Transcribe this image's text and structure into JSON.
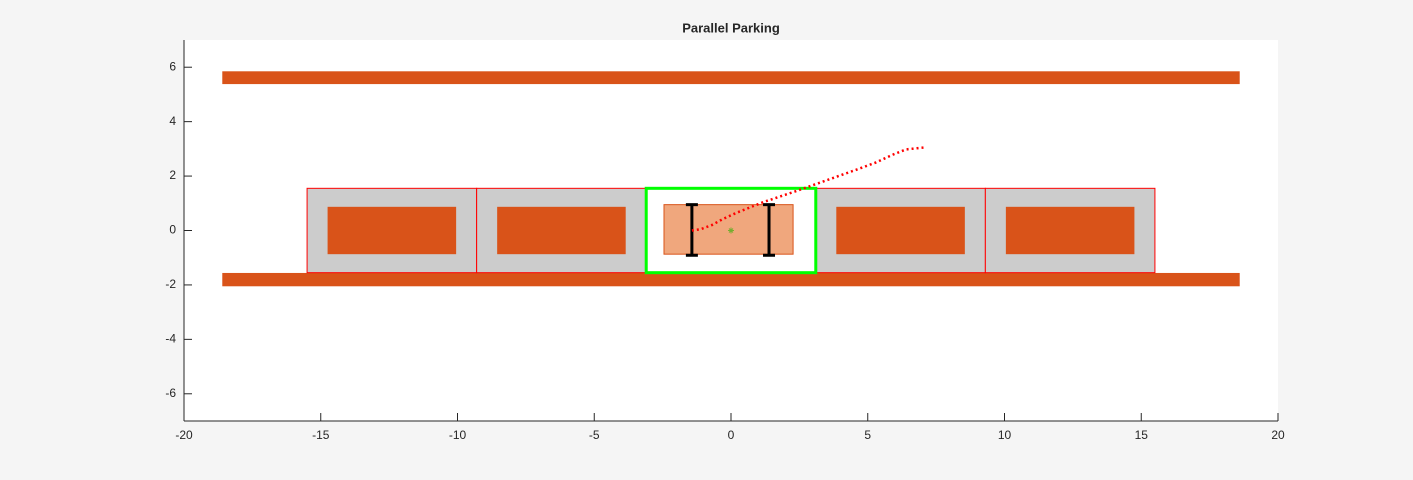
{
  "chart_data": {
    "type": "parking",
    "title": "Parallel Parking",
    "xlim": [
      -20,
      20
    ],
    "ylim": [
      -7,
      7
    ],
    "xticks": [
      -20,
      -15,
      -10,
      -5,
      0,
      5,
      10,
      15,
      20
    ],
    "yticks": [
      -6,
      -4,
      -2,
      0,
      2,
      4,
      6
    ],
    "curb_color": "#d95319",
    "curbs": [
      {
        "x": [
          -18.6,
          18.6
        ],
        "y": [
          5.38,
          5.85
        ]
      },
      {
        "x": [
          -18.6,
          18.6
        ],
        "y": [
          -2.05,
          -1.56
        ]
      }
    ],
    "slot_fill": "#cccccc",
    "slot_edge": "#ff0000",
    "slots": [
      {
        "x": [
          -15.5,
          -9.3
        ],
        "y": [
          -1.55,
          1.55
        ]
      },
      {
        "x": [
          -9.3,
          -3.1
        ],
        "y": [
          -1.55,
          1.55
        ]
      },
      {
        "x": [
          3.1,
          9.3
        ],
        "y": [
          -1.55,
          1.55
        ]
      },
      {
        "x": [
          9.3,
          15.5
        ],
        "y": [
          -1.55,
          1.55
        ]
      }
    ],
    "parked_cars": [
      {
        "x": [
          -14.75,
          -10.05
        ],
        "y": [
          -0.87,
          0.87
        ]
      },
      {
        "x": [
          -8.55,
          -3.85
        ],
        "y": [
          -0.87,
          0.87
        ]
      },
      {
        "x": [
          3.85,
          8.55
        ],
        "y": [
          -0.87,
          0.87
        ]
      },
      {
        "x": [
          10.05,
          14.75
        ],
        "y": [
          -0.87,
          0.87
        ]
      }
    ],
    "goal": {
      "x": [
        -3.1,
        3.1
      ],
      "y": [
        -1.55,
        1.55
      ],
      "color": "#00ff00"
    },
    "ego": {
      "x": [
        -2.45,
        2.27
      ],
      "y": [
        -0.87,
        0.95
      ],
      "color": "#f0a77d"
    },
    "axles": [
      {
        "x": -1.43,
        "y": [
          -0.91,
          0.95
        ]
      },
      {
        "x": 1.39,
        "y": [
          -0.91,
          0.95
        ]
      }
    ],
    "center": {
      "x": 0,
      "y": 0,
      "color": "#77ac30"
    },
    "trajectory": {
      "color": "#ff0000",
      "x": [
        -1.43,
        -1.1,
        -0.7,
        -0.3,
        0.2,
        0.7,
        1.2,
        1.8,
        2.5,
        3.2,
        3.9,
        4.6,
        5.3,
        5.9,
        6.4,
        7.06
      ],
      "y": [
        0,
        0.05,
        0.2,
        0.42,
        0.65,
        0.85,
        1.05,
        1.25,
        1.49,
        1.74,
        1.99,
        2.24,
        2.5,
        2.78,
        2.98,
        3.05
      ]
    }
  }
}
